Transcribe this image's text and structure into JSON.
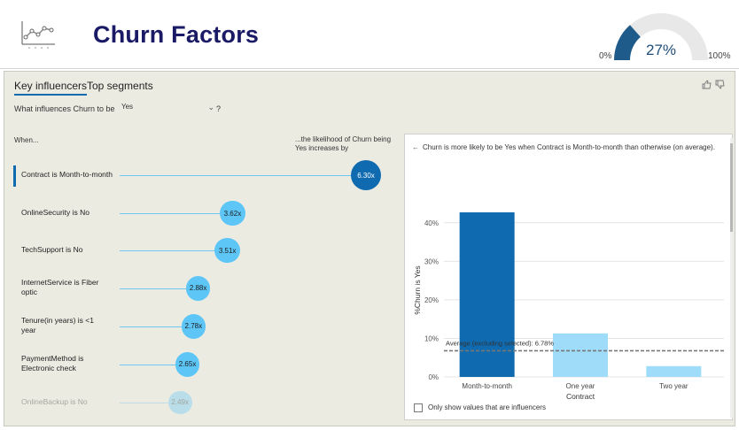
{
  "header": {
    "title": "Churn Factors",
    "logo_icon": "line-chart-icon",
    "gauge": {
      "value_text": "27%",
      "min_text": "0%",
      "max_text": "100%",
      "fraction": 0.27,
      "fill_color": "#1f5b8a",
      "track_color": "#e8e8e8"
    }
  },
  "tabs": [
    {
      "label": "Key influencers",
      "active": true
    },
    {
      "label": "Top segments",
      "active": false
    }
  ],
  "feedback": {
    "like_icon": "thumbs-up-icon",
    "dislike_icon": "thumbs-down-icon"
  },
  "question": {
    "prefix": "What influences Churn to be",
    "selected": "Yes",
    "help": "?"
  },
  "columns": {
    "when": "When...",
    "likelihood": "...the likelihood of Churn being Yes increases by"
  },
  "influencers": [
    {
      "label": "Contract is Month-to-month",
      "value": "6.30x",
      "selected": true
    },
    {
      "label": "OnlineSecurity is No",
      "value": "3.62x",
      "selected": false
    },
    {
      "label": "TechSupport is No",
      "value": "3.51x",
      "selected": false
    },
    {
      "label": "InternetService is Fiber optic",
      "value": "2.88x",
      "selected": false
    },
    {
      "label": "Tenure(in years) is <1 year",
      "value": "2.78x",
      "selected": false
    },
    {
      "label": "PaymentMethod is Electronic check",
      "value": "2.65x",
      "selected": false
    },
    {
      "label": "OnlineBackup is No",
      "value": "2.49x",
      "selected": false,
      "faded": true
    }
  ],
  "detail": {
    "header": "Churn is more likely to be Yes when Contract is Month-to-month than otherwise (on average).",
    "back_icon": "arrow-left-icon",
    "checkbox_label": "Only show values that are influencers"
  },
  "chart_data": {
    "type": "bar",
    "categories": [
      "Month-to-month",
      "One year",
      "Two year"
    ],
    "values": [
      42.7,
      11.3,
      2.8
    ],
    "colors": [
      "#0f6ab0",
      "#9fdcfa",
      "#9fdcfa"
    ],
    "xlabel": "Contract",
    "ylabel": "%Churn is Yes",
    "ylim": [
      0,
      45
    ],
    "yticks": [
      "0%",
      "10%",
      "20%",
      "30%",
      "40%"
    ],
    "ytick_values": [
      0,
      10,
      20,
      30,
      40
    ],
    "average": {
      "label": "Average (excluding selected): 6.78%",
      "value": 6.78
    },
    "grid": true
  }
}
